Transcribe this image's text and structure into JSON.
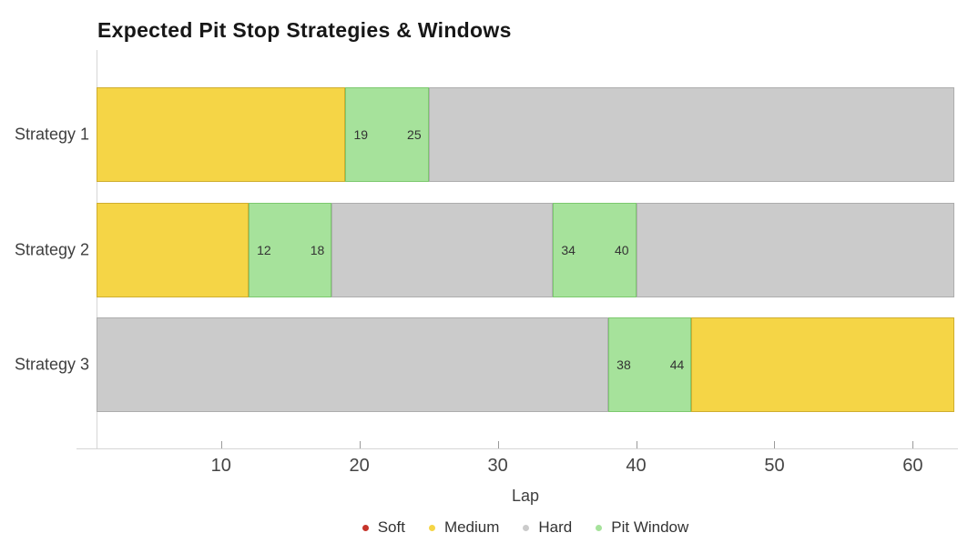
{
  "chart_data": {
    "type": "bar",
    "subtype": "horizontal-stacked-timeline",
    "title": "Expected Pit Stop Strategies & Windows",
    "xlabel": "Lap",
    "x_range": [
      1,
      63
    ],
    "x_ticks": [
      10,
      20,
      30,
      40,
      50,
      60
    ],
    "grid": false,
    "legend_position": "bottom-center",
    "colors": {
      "Soft": {
        "fill": "#c6342b",
        "border": "#a82a22"
      },
      "Medium": {
        "fill": "#f5d546",
        "border": "#cfae2f"
      },
      "Hard": {
        "fill": "#cbcbcb",
        "border": "#adadad"
      },
      "Pit Window": {
        "fill": "#a6e29b",
        "border": "#7cc96e"
      }
    },
    "legend": [
      {
        "label": "Soft",
        "color": "#c6342b"
      },
      {
        "label": "Medium",
        "color": "#f5d546"
      },
      {
        "label": "Hard",
        "color": "#cbcbcb"
      },
      {
        "label": "Pit Window",
        "color": "#a6e29b"
      }
    ],
    "categories": [
      "Strategy 1",
      "Strategy 2",
      "Strategy 3"
    ],
    "series": [
      {
        "name": "Strategy 1",
        "segments": [
          {
            "kind": "Medium",
            "start": 1,
            "end": 19
          },
          {
            "kind": "Pit Window",
            "start": 19,
            "end": 25,
            "start_label": "19",
            "end_label": "25"
          },
          {
            "kind": "Hard",
            "start": 25,
            "end": 63
          }
        ]
      },
      {
        "name": "Strategy 2",
        "segments": [
          {
            "kind": "Medium",
            "start": 1,
            "end": 12
          },
          {
            "kind": "Pit Window",
            "start": 12,
            "end": 18,
            "start_label": "12",
            "end_label": "18"
          },
          {
            "kind": "Hard",
            "start": 18,
            "end": 34
          },
          {
            "kind": "Pit Window",
            "start": 34,
            "end": 40,
            "start_label": "34",
            "end_label": "40"
          },
          {
            "kind": "Hard",
            "start": 40,
            "end": 63
          }
        ]
      },
      {
        "name": "Strategy 3",
        "segments": [
          {
            "kind": "Hard",
            "start": 1,
            "end": 38
          },
          {
            "kind": "Pit Window",
            "start": 38,
            "end": 44,
            "start_label": "38",
            "end_label": "44"
          },
          {
            "kind": "Medium",
            "start": 44,
            "end": 63
          }
        ]
      }
    ]
  }
}
